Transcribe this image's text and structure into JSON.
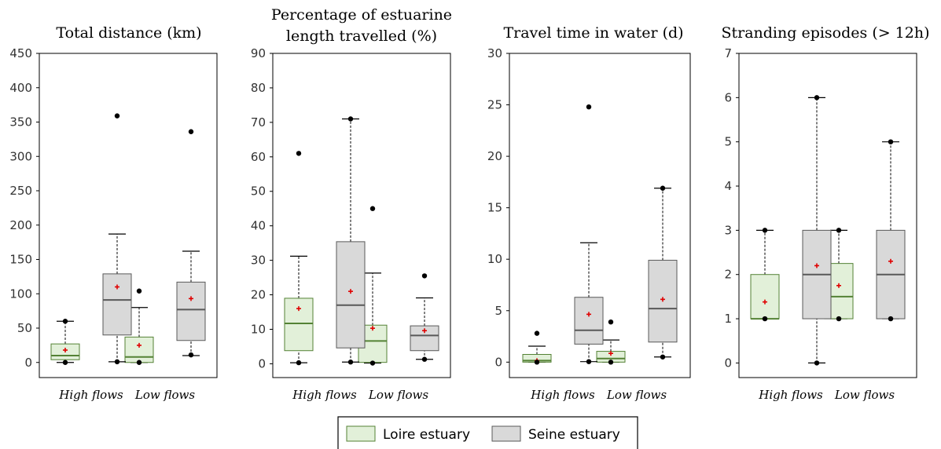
{
  "legend": {
    "entries": [
      {
        "label": "Loire estuary",
        "fill": "#e2f0d9",
        "stroke": "#548235",
        "median": "#548235"
      },
      {
        "label": "Seine estuary",
        "fill": "#d9d9d9",
        "stroke": "#595959",
        "median": "#595959"
      }
    ]
  },
  "colors": {
    "mean_marker": "#e00000",
    "whisker": "#000000",
    "outlier": "#000000"
  },
  "chart_data": [
    {
      "type": "box",
      "title": [
        "Total distance (km)"
      ],
      "categories": [
        "High flows",
        "Low flows"
      ],
      "ylim": [
        -22,
        450
      ],
      "yticks": [
        0,
        50,
        100,
        150,
        200,
        250,
        300,
        350,
        400,
        450
      ],
      "series": [
        {
          "name": "Loire estuary",
          "boxes": [
            {
              "min": 0,
              "q1": 4,
              "median": 10,
              "q3": 27,
              "max": 60,
              "mean": 18,
              "outliers": [
                0,
                60
              ]
            },
            {
              "min": 0,
              "q1": 0,
              "median": 8,
              "q3": 37,
              "max": 80,
              "mean": 25,
              "outliers": [
                0,
                104
              ]
            }
          ]
        },
        {
          "name": "Seine estuary",
          "boxes": [
            {
              "min": 1,
              "q1": 40,
              "median": 91,
              "q3": 129,
              "max": 187,
              "mean": 110,
              "outliers": [
                1,
                359
              ]
            },
            {
              "min": 10,
              "q1": 32,
              "median": 77,
              "q3": 117,
              "max": 162,
              "mean": 93,
              "outliers": [
                11,
                336
              ]
            }
          ]
        }
      ]
    },
    {
      "type": "box",
      "title": [
        "Percentage of estuarine",
        "length travelled (%)"
      ],
      "categories": [
        "High flows",
        "Low flows"
      ],
      "ylim": [
        -4,
        90
      ],
      "yticks": [
        0,
        10,
        20,
        30,
        40,
        50,
        60,
        70,
        80,
        90
      ],
      "series": [
        {
          "name": "Loire estuary",
          "boxes": [
            {
              "min": 0.3,
              "q1": 3.8,
              "median": 11.7,
              "q3": 19,
              "max": 31.2,
              "mean": 16,
              "outliers": [
                0.3,
                61
              ]
            },
            {
              "min": 0.2,
              "q1": 0.4,
              "median": 6.6,
              "q3": 11.2,
              "max": 26.3,
              "mean": 10.3,
              "outliers": [
                0.2,
                45
              ]
            }
          ]
        },
        {
          "name": "Seine estuary",
          "boxes": [
            {
              "min": 0.5,
              "q1": 4.6,
              "median": 17,
              "q3": 35.4,
              "max": 71,
              "mean": 21,
              "outliers": [
                0.5,
                71
              ]
            },
            {
              "min": 1.3,
              "q1": 3.8,
              "median": 8.2,
              "q3": 11,
              "max": 19.1,
              "mean": 9.6,
              "outliers": [
                1.3,
                25.5
              ]
            }
          ]
        }
      ]
    },
    {
      "type": "box",
      "title": [
        "Travel time in water (d)"
      ],
      "categories": [
        "High flows",
        "Low flows"
      ],
      "ylim": [
        -1.5,
        30
      ],
      "yticks": [
        0,
        5,
        10,
        15,
        20,
        25,
        30
      ],
      "series": [
        {
          "name": "Loire estuary",
          "boxes": [
            {
              "min": 0,
              "q1": 0,
              "median": 0.15,
              "q3": 0.75,
              "max": 1.55,
              "mean": 0.15,
              "outliers": [
                0,
                2.8
              ]
            },
            {
              "min": 0,
              "q1": 0,
              "median": 0.35,
              "q3": 1.05,
              "max": 2.15,
              "mean": 0.85,
              "outliers": [
                0,
                3.9
              ]
            }
          ]
        },
        {
          "name": "Seine estuary",
          "boxes": [
            {
              "min": 0.05,
              "q1": 1.75,
              "median": 3.1,
              "q3": 6.3,
              "max": 11.6,
              "mean": 4.65,
              "outliers": [
                0.05,
                24.8
              ]
            },
            {
              "min": 0.5,
              "q1": 1.95,
              "median": 5.2,
              "q3": 9.9,
              "max": 16.9,
              "mean": 6.1,
              "outliers": [
                0.5,
                16.9
              ]
            }
          ]
        }
      ]
    },
    {
      "type": "box",
      "title": [
        "Stranding episodes (> 12h)"
      ],
      "categories": [
        "High flows",
        "Low flows"
      ],
      "ylim": [
        -0.33,
        7
      ],
      "yticks": [
        0,
        1,
        2,
        3,
        4,
        5,
        6,
        7
      ],
      "series": [
        {
          "name": "Loire estuary",
          "boxes": [
            {
              "min": 1,
              "q1": 1,
              "median": 1,
              "q3": 2,
              "max": 3,
              "mean": 1.38,
              "outliers": [
                1,
                3
              ]
            },
            {
              "min": 1,
              "q1": 1,
              "median": 1.5,
              "q3": 2.25,
              "max": 3,
              "mean": 1.75,
              "outliers": [
                1,
                3
              ]
            }
          ]
        },
        {
          "name": "Seine estuary",
          "boxes": [
            {
              "min": 0,
              "q1": 1,
              "median": 2,
              "q3": 3,
              "max": 6,
              "mean": 2.2,
              "outliers": [
                0,
                6
              ]
            },
            {
              "min": 1,
              "q1": 1,
              "median": 2,
              "q3": 3,
              "max": 5,
              "mean": 2.3,
              "outliers": [
                1,
                5
              ]
            }
          ]
        }
      ]
    }
  ]
}
